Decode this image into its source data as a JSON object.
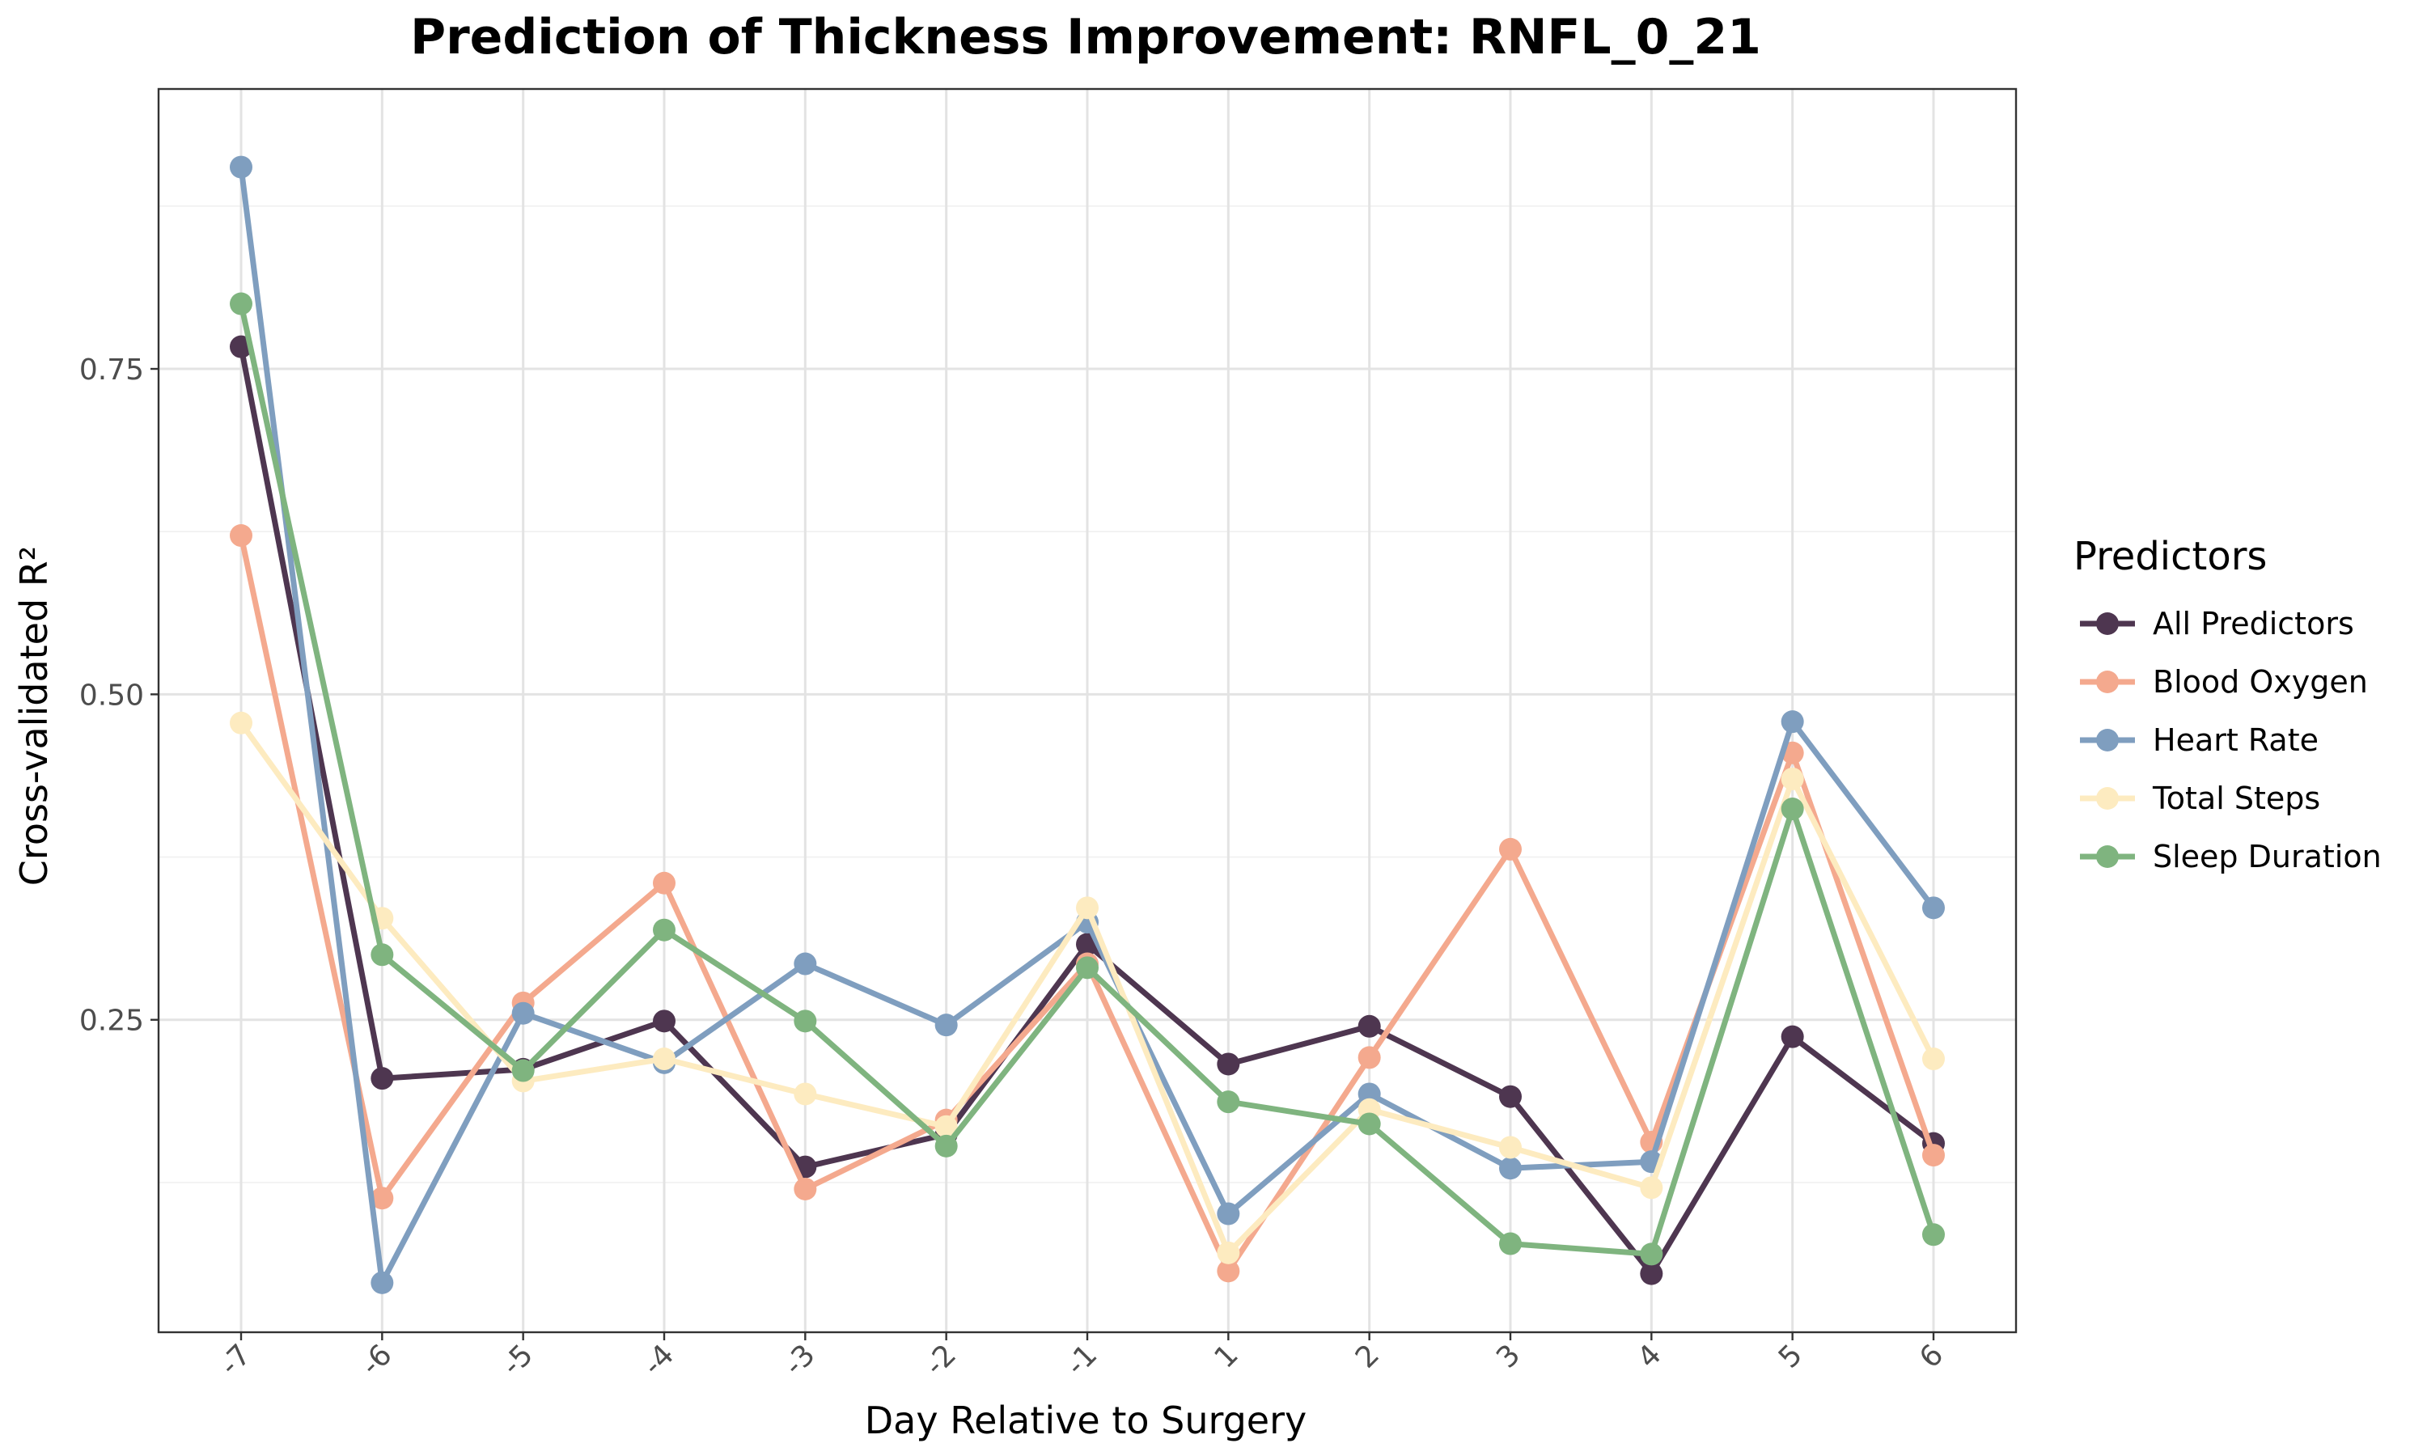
{
  "chart_data": {
    "type": "line",
    "title": "Prediction of Thickness Improvement: RNFL_0_21",
    "xlabel": "Day Relative to Surgery",
    "ylabel": "Cross-validated R²",
    "categories": [
      "-7",
      "-6",
      "-5",
      "-4",
      "-3",
      "-2",
      "-1",
      "1",
      "2",
      "3",
      "4",
      "5",
      "6"
    ],
    "yticks": [
      0.25,
      0.5,
      0.75
    ],
    "ytick_labels": [
      "0.25",
      "0.50",
      "0.75"
    ],
    "ylim": [
      0.01,
      0.965
    ],
    "grid": true,
    "legend_title": "Predictors",
    "legend_position": "right",
    "series": [
      {
        "name": "All Predictors",
        "color": "#4E3650",
        "values": [
          0.767,
          0.205,
          0.212,
          0.249,
          0.137,
          0.162,
          0.308,
          0.216,
          0.245,
          0.191,
          0.055,
          0.237,
          0.155
        ]
      },
      {
        "name": "Blood Oxygen",
        "color": "#F4A98E",
        "values": [
          0.622,
          0.113,
          0.263,
          0.355,
          0.12,
          0.173,
          0.293,
          0.057,
          0.221,
          0.381,
          0.156,
          0.455,
          0.146
        ]
      },
      {
        "name": "Heart Rate",
        "color": "#7F9EBF",
        "values": [
          0.905,
          0.048,
          0.255,
          0.217,
          0.293,
          0.246,
          0.325,
          0.101,
          0.193,
          0.136,
          0.141,
          0.479,
          0.336
        ]
      },
      {
        "name": "Total Steps",
        "color": "#FDEBC0",
        "values": [
          0.478,
          0.328,
          0.203,
          0.22,
          0.193,
          0.168,
          0.336,
          0.071,
          0.181,
          0.152,
          0.121,
          0.435,
          0.22
        ]
      },
      {
        "name": "Sleep Duration",
        "color": "#7FB47F",
        "values": [
          0.8,
          0.3,
          0.211,
          0.319,
          0.249,
          0.153,
          0.29,
          0.187,
          0.17,
          0.078,
          0.07,
          0.412,
          0.085
        ]
      }
    ]
  }
}
